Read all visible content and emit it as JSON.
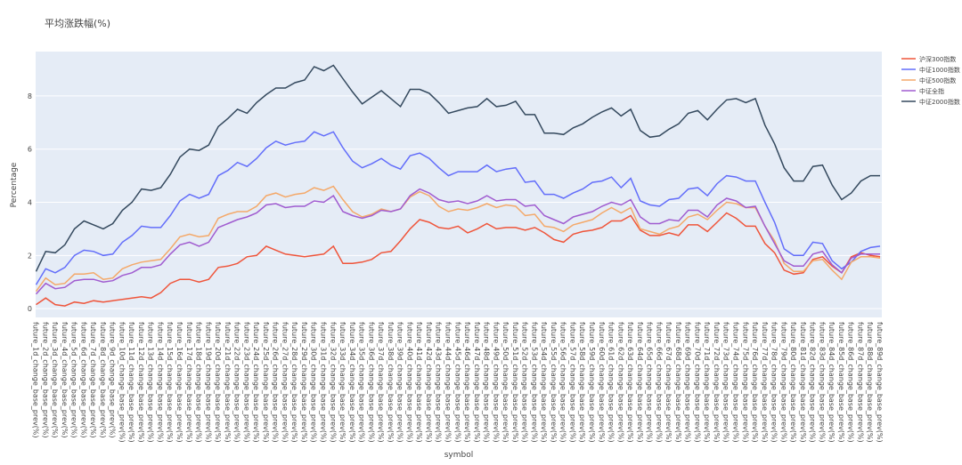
{
  "chart_data": {
    "type": "line",
    "title": "平均涨跌幅(%)",
    "x_label": "symbol",
    "y_label": "Percentage",
    "categories": [
      "future_1d_change_base_prev(%)",
      "future_2d_change_base_prev(%)",
      "future_3d_change_base_prev(%)",
      "future_4d_change_base_prev(%)",
      "future_5d_change_base_prev(%)",
      "future_6d_change_base_prev(%)",
      "future_7d_change_base_prev(%)",
      "future_8d_change_base_prev(%)",
      "future_9d_change_base_prev(%)",
      "future_10d_change_base_prev(%)",
      "future_11d_change_base_prev(%)",
      "future_12d_change_base_prev(%)",
      "future_13d_change_base_prev(%)",
      "future_14d_change_base_prev(%)",
      "future_15d_change_base_prev(%)",
      "future_16d_change_base_prev(%)",
      "future_17d_change_base_prev(%)",
      "future_18d_change_base_prev(%)",
      "future_19d_change_base_prev(%)",
      "future_20d_change_base_prev(%)",
      "future_21d_change_base_prev(%)",
      "future_22d_change_base_prev(%)",
      "future_23d_change_base_prev(%)",
      "future_24d_change_base_prev(%)",
      "future_25d_change_base_prev(%)",
      "future_26d_change_base_prev(%)",
      "future_27d_change_base_prev(%)",
      "future_28d_change_base_prev(%)",
      "future_29d_change_base_prev(%)",
      "future_30d_change_base_prev(%)",
      "future_31d_change_base_prev(%)",
      "future_32d_change_base_prev(%)",
      "future_33d_change_base_prev(%)",
      "future_34d_change_base_prev(%)",
      "future_35d_change_base_prev(%)",
      "future_36d_change_base_prev(%)",
      "future_37d_change_base_prev(%)",
      "future_38d_change_base_prev(%)",
      "future_39d_change_base_prev(%)",
      "future_40d_change_base_prev(%)",
      "future_41d_change_base_prev(%)",
      "future_42d_change_base_prev(%)",
      "future_43d_change_base_prev(%)",
      "future_44d_change_base_prev(%)",
      "future_45d_change_base_prev(%)",
      "future_46d_change_base_prev(%)",
      "future_47d_change_base_prev(%)",
      "future_48d_change_base_prev(%)",
      "future_49d_change_base_prev(%)",
      "future_50d_change_base_prev(%)",
      "future_51d_change_base_prev(%)",
      "future_52d_change_base_prev(%)",
      "future_53d_change_base_prev(%)",
      "future_54d_change_base_prev(%)",
      "future_55d_change_base_prev(%)",
      "future_56d_change_base_prev(%)",
      "future_57d_change_base_prev(%)",
      "future_58d_change_base_prev(%)",
      "future_59d_change_base_prev(%)",
      "future_60d_change_base_prev(%)",
      "future_61d_change_base_prev(%)",
      "future_62d_change_base_prev(%)",
      "future_63d_change_base_prev(%)",
      "future_64d_change_base_prev(%)",
      "future_65d_change_base_prev(%)",
      "future_66d_change_base_prev(%)",
      "future_67d_change_base_prev(%)",
      "future_68d_change_base_prev(%)",
      "future_69d_change_base_prev(%)",
      "future_70d_change_base_prev(%)",
      "future_71d_change_base_prev(%)",
      "future_72d_change_base_prev(%)",
      "future_73d_change_base_prev(%)",
      "future_74d_change_base_prev(%)",
      "future_75d_change_base_prev(%)",
      "future_76d_change_base_prev(%)",
      "future_77d_change_base_prev(%)",
      "future_78d_change_base_prev(%)",
      "future_79d_change_base_prev(%)",
      "future_80d_change_base_prev(%)",
      "future_81d_change_base_prev(%)",
      "future_82d_change_base_prev(%)",
      "future_83d_change_base_prev(%)",
      "future_84d_change_base_prev(%)",
      "future_85d_change_base_prev(%)",
      "future_86d_change_base_prev(%)",
      "future_87d_change_base_prev(%)",
      "future_88d_change_base_prev(%)",
      "future_89d_change_base_prev(%)"
    ],
    "series": [
      {
        "name": "沪深300指数",
        "color": "#ef553b",
        "values": [
          0.15,
          0.4,
          0.15,
          0.1,
          0.25,
          0.2,
          0.3,
          0.25,
          0.3,
          0.35,
          0.4,
          0.45,
          0.4,
          0.6,
          0.95,
          1.1,
          1.1,
          1.0,
          1.1,
          1.55,
          1.6,
          1.7,
          1.95,
          2.0,
          2.35,
          2.2,
          2.05,
          2.0,
          1.95,
          2.0,
          2.05,
          2.35,
          1.7,
          1.7,
          1.75,
          1.85,
          2.1,
          2.15,
          2.55,
          3.0,
          3.35,
          3.25,
          3.05,
          3.0,
          3.1,
          2.85,
          3.0,
          3.2,
          3.0,
          3.05,
          3.05,
          2.95,
          3.05,
          2.85,
          2.6,
          2.5,
          2.8,
          2.9,
          2.95,
          3.05,
          3.3,
          3.3,
          3.5,
          2.95,
          2.75,
          2.75,
          2.85,
          2.75,
          3.15,
          3.15,
          2.9,
          3.25,
          3.6,
          3.4,
          3.1,
          3.1,
          2.45,
          2.1,
          1.45,
          1.3,
          1.35,
          1.85,
          1.95,
          1.6,
          1.35,
          1.95,
          2.1,
          2.0,
          1.95
        ]
      },
      {
        "name": "中证1000指数",
        "color": "#636efa",
        "values": [
          0.9,
          1.5,
          1.35,
          1.55,
          2.0,
          2.2,
          2.15,
          2.0,
          2.05,
          2.5,
          2.75,
          3.1,
          3.05,
          3.05,
          3.5,
          4.05,
          4.3,
          4.15,
          4.3,
          5.0,
          5.2,
          5.5,
          5.35,
          5.65,
          6.05,
          6.3,
          6.15,
          6.25,
          6.3,
          6.65,
          6.5,
          6.65,
          6.05,
          5.55,
          5.3,
          5.45,
          5.65,
          5.4,
          5.25,
          5.75,
          5.85,
          5.65,
          5.3,
          5.0,
          5.15,
          5.15,
          5.15,
          5.4,
          5.15,
          5.25,
          5.3,
          4.75,
          4.8,
          4.3,
          4.3,
          4.15,
          4.35,
          4.5,
          4.75,
          4.8,
          4.95,
          4.55,
          4.9,
          4.05,
          3.9,
          3.85,
          4.1,
          4.15,
          4.5,
          4.55,
          4.25,
          4.7,
          5.0,
          4.95,
          4.8,
          4.8,
          4.0,
          3.25,
          2.25,
          2.0,
          2.0,
          2.5,
          2.45,
          1.8,
          1.5,
          1.75,
          2.15,
          2.3,
          2.35
        ]
      },
      {
        "name": "中证500指数",
        "color": "#f4a96a",
        "values": [
          0.65,
          1.15,
          0.9,
          0.95,
          1.3,
          1.3,
          1.35,
          1.1,
          1.15,
          1.5,
          1.65,
          1.75,
          1.8,
          1.85,
          2.25,
          2.7,
          2.8,
          2.7,
          2.75,
          3.4,
          3.55,
          3.65,
          3.65,
          3.85,
          4.25,
          4.35,
          4.2,
          4.3,
          4.35,
          4.55,
          4.45,
          4.6,
          4.1,
          3.65,
          3.45,
          3.55,
          3.75,
          3.65,
          3.75,
          4.2,
          4.4,
          4.25,
          3.85,
          3.65,
          3.75,
          3.7,
          3.8,
          3.95,
          3.8,
          3.9,
          3.85,
          3.5,
          3.55,
          3.1,
          3.05,
          2.9,
          3.15,
          3.25,
          3.35,
          3.6,
          3.8,
          3.6,
          3.8,
          3.0,
          2.9,
          2.8,
          3.0,
          3.1,
          3.45,
          3.55,
          3.35,
          3.7,
          4.0,
          3.95,
          3.8,
          3.8,
          3.1,
          2.55,
          1.7,
          1.4,
          1.4,
          1.8,
          1.85,
          1.45,
          1.1,
          1.75,
          1.95,
          1.95,
          1.9
        ]
      },
      {
        "name": "中证全指",
        "color": "#a05cd0",
        "values": [
          0.55,
          0.95,
          0.75,
          0.8,
          1.05,
          1.1,
          1.1,
          1.0,
          1.05,
          1.25,
          1.35,
          1.55,
          1.55,
          1.65,
          2.05,
          2.4,
          2.5,
          2.35,
          2.5,
          3.05,
          3.2,
          3.35,
          3.45,
          3.6,
          3.9,
          3.95,
          3.8,
          3.85,
          3.85,
          4.05,
          4.0,
          4.25,
          3.65,
          3.5,
          3.4,
          3.5,
          3.7,
          3.65,
          3.75,
          4.25,
          4.5,
          4.35,
          4.1,
          4.0,
          4.05,
          3.95,
          4.05,
          4.25,
          4.05,
          4.1,
          4.1,
          3.85,
          3.9,
          3.5,
          3.35,
          3.2,
          3.45,
          3.55,
          3.65,
          3.85,
          4.0,
          3.9,
          4.1,
          3.45,
          3.2,
          3.2,
          3.35,
          3.3,
          3.7,
          3.7,
          3.45,
          3.9,
          4.15,
          4.05,
          3.8,
          3.85,
          3.1,
          2.45,
          1.8,
          1.6,
          1.6,
          2.05,
          2.15,
          1.65,
          1.35,
          1.9,
          2.05,
          2.05,
          2.05
        ]
      },
      {
        "name": "中证2000指数",
        "color": "#34495e",
        "values": [
          1.4,
          2.15,
          2.1,
          2.4,
          3.0,
          3.3,
          3.15,
          3.0,
          3.2,
          3.7,
          4.0,
          4.5,
          4.45,
          4.55,
          5.05,
          5.7,
          6.0,
          5.95,
          6.15,
          6.85,
          7.15,
          7.5,
          7.35,
          7.75,
          8.05,
          8.3,
          8.3,
          8.5,
          8.6,
          9.1,
          8.95,
          9.15,
          8.65,
          8.15,
          7.7,
          7.95,
          8.2,
          7.9,
          7.6,
          8.25,
          8.25,
          8.1,
          7.75,
          7.35,
          7.45,
          7.55,
          7.6,
          7.9,
          7.6,
          7.65,
          7.8,
          7.3,
          7.3,
          6.6,
          6.6,
          6.55,
          6.8,
          6.95,
          7.2,
          7.4,
          7.55,
          7.25,
          7.5,
          6.7,
          6.45,
          6.5,
          6.75,
          6.95,
          7.35,
          7.45,
          7.1,
          7.5,
          7.85,
          7.9,
          7.75,
          7.9,
          6.9,
          6.2,
          5.3,
          4.8,
          4.8,
          5.35,
          5.4,
          4.65,
          4.1,
          4.35,
          4.8,
          5.0,
          5.0
        ]
      }
    ],
    "ylim": [
      -0.33,
      9.67
    ],
    "yticks": [
      0,
      2,
      4,
      6,
      8
    ],
    "grid": true,
    "legend": "right"
  }
}
